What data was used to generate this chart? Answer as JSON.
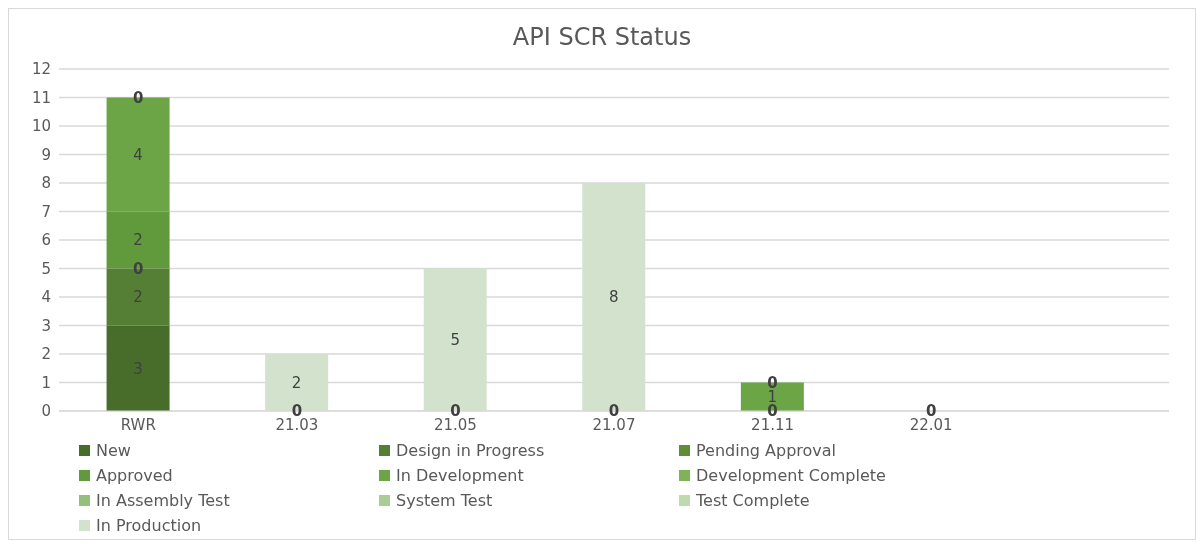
{
  "chart_data": {
    "type": "bar",
    "title": "API SCR Status",
    "stacked": true,
    "categories": [
      "RWR",
      "21.03",
      "21.05",
      "21.07",
      "21.11",
      "22.01",
      null
    ],
    "series": [
      {
        "name": "New",
        "color": "#486d2b",
        "values": [
          3,
          0,
          0,
          0,
          0,
          0,
          null
        ],
        "value_labels": [
          "3",
          null,
          null,
          null,
          null,
          null,
          null
        ]
      },
      {
        "name": "Design in Progress",
        "color": "#557f35",
        "values": [
          2,
          null,
          null,
          null,
          null,
          null,
          null
        ],
        "value_labels": [
          "2",
          null,
          null,
          null,
          null,
          null,
          null
        ]
      },
      {
        "name": "Pending Approval",
        "color": "#5c8f38",
        "values": [
          0,
          null,
          null,
          null,
          null,
          null,
          null
        ]
      },
      {
        "name": "Approved",
        "color": "#609a3c",
        "values": [
          2,
          null,
          null,
          null,
          null,
          null,
          null
        ],
        "value_labels": [
          "2",
          null,
          null,
          null,
          null,
          null,
          null
        ]
      },
      {
        "name": "In Development",
        "color": "#6ba545",
        "values": [
          4,
          null,
          null,
          null,
          1,
          null,
          null
        ],
        "value_labels": [
          "4",
          null,
          null,
          null,
          "1",
          null,
          null
        ]
      },
      {
        "name": "Development Complete",
        "color": "#7fb35a",
        "values": [
          0,
          null,
          null,
          null,
          0,
          null,
          null
        ]
      },
      {
        "name": "In Assembly Test",
        "color": "#95c07c",
        "values": [
          null,
          null,
          null,
          null,
          null,
          null,
          null
        ]
      },
      {
        "name": "System Test",
        "color": "#a9cd95",
        "values": [
          null,
          null,
          null,
          null,
          null,
          null,
          null
        ]
      },
      {
        "name": "Test Complete",
        "color": "#bfdaaf",
        "values": [
          null,
          null,
          null,
          null,
          null,
          null,
          null
        ]
      },
      {
        "name": "In Production",
        "color": "#d3e2cc",
        "values": [
          null,
          2,
          5,
          8,
          null,
          null,
          null
        ],
        "value_labels": [
          null,
          "2",
          "5",
          "8",
          null,
          null,
          null
        ]
      }
    ],
    "annotations": [
      {
        "text": "0",
        "x": "RWR",
        "y": 5
      },
      {
        "text": "0",
        "x": "RWR",
        "y": 11
      },
      {
        "text": "0",
        "x": "21.03",
        "y": 0
      },
      {
        "text": "0",
        "x": "21.05",
        "y": 0
      },
      {
        "text": "0",
        "x": "21.07",
        "y": 0
      },
      {
        "text": "0",
        "x": "21.11",
        "y": 0
      },
      {
        "text": "0",
        "x": "21.11",
        "y": 1
      },
      {
        "text": "0",
        "x": "22.01",
        "y": 0
      }
    ],
    "ylim": [
      0,
      12
    ],
    "yticks": [
      0,
      1,
      2,
      3,
      4,
      5,
      6,
      7,
      8,
      9,
      10,
      11,
      12
    ],
    "grid": "y",
    "legend": "bottom"
  }
}
